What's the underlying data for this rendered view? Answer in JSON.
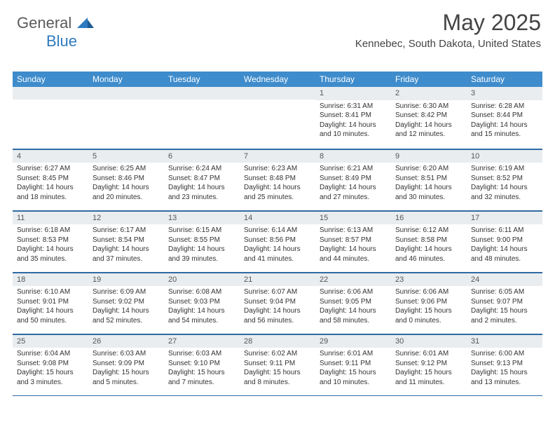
{
  "brand": {
    "part1": "General",
    "part2": "Blue"
  },
  "title": "May 2025",
  "subtitle": "Kennebec, South Dakota, United States",
  "colors": {
    "header_bg": "#3e8ccc",
    "daynum_bg": "#e9edf0",
    "rule": "#2f6aa3",
    "text": "#333333",
    "brand_gray": "#5a5a5a",
    "brand_blue": "#2f7ac0"
  },
  "columns": [
    "Sunday",
    "Monday",
    "Tuesday",
    "Wednesday",
    "Thursday",
    "Friday",
    "Saturday"
  ],
  "weeks": [
    [
      null,
      null,
      null,
      null,
      {
        "n": "1",
        "sunrise": "6:31 AM",
        "sunset": "8:41 PM",
        "dl": "14 hours and 10 minutes."
      },
      {
        "n": "2",
        "sunrise": "6:30 AM",
        "sunset": "8:42 PM",
        "dl": "14 hours and 12 minutes."
      },
      {
        "n": "3",
        "sunrise": "6:28 AM",
        "sunset": "8:44 PM",
        "dl": "14 hours and 15 minutes."
      }
    ],
    [
      {
        "n": "4",
        "sunrise": "6:27 AM",
        "sunset": "8:45 PM",
        "dl": "14 hours and 18 minutes."
      },
      {
        "n": "5",
        "sunrise": "6:25 AM",
        "sunset": "8:46 PM",
        "dl": "14 hours and 20 minutes."
      },
      {
        "n": "6",
        "sunrise": "6:24 AM",
        "sunset": "8:47 PM",
        "dl": "14 hours and 23 minutes."
      },
      {
        "n": "7",
        "sunrise": "6:23 AM",
        "sunset": "8:48 PM",
        "dl": "14 hours and 25 minutes."
      },
      {
        "n": "8",
        "sunrise": "6:21 AM",
        "sunset": "8:49 PM",
        "dl": "14 hours and 27 minutes."
      },
      {
        "n": "9",
        "sunrise": "6:20 AM",
        "sunset": "8:51 PM",
        "dl": "14 hours and 30 minutes."
      },
      {
        "n": "10",
        "sunrise": "6:19 AM",
        "sunset": "8:52 PM",
        "dl": "14 hours and 32 minutes."
      }
    ],
    [
      {
        "n": "11",
        "sunrise": "6:18 AM",
        "sunset": "8:53 PM",
        "dl": "14 hours and 35 minutes."
      },
      {
        "n": "12",
        "sunrise": "6:17 AM",
        "sunset": "8:54 PM",
        "dl": "14 hours and 37 minutes."
      },
      {
        "n": "13",
        "sunrise": "6:15 AM",
        "sunset": "8:55 PM",
        "dl": "14 hours and 39 minutes."
      },
      {
        "n": "14",
        "sunrise": "6:14 AM",
        "sunset": "8:56 PM",
        "dl": "14 hours and 41 minutes."
      },
      {
        "n": "15",
        "sunrise": "6:13 AM",
        "sunset": "8:57 PM",
        "dl": "14 hours and 44 minutes."
      },
      {
        "n": "16",
        "sunrise": "6:12 AM",
        "sunset": "8:58 PM",
        "dl": "14 hours and 46 minutes."
      },
      {
        "n": "17",
        "sunrise": "6:11 AM",
        "sunset": "9:00 PM",
        "dl": "14 hours and 48 minutes."
      }
    ],
    [
      {
        "n": "18",
        "sunrise": "6:10 AM",
        "sunset": "9:01 PM",
        "dl": "14 hours and 50 minutes."
      },
      {
        "n": "19",
        "sunrise": "6:09 AM",
        "sunset": "9:02 PM",
        "dl": "14 hours and 52 minutes."
      },
      {
        "n": "20",
        "sunrise": "6:08 AM",
        "sunset": "9:03 PM",
        "dl": "14 hours and 54 minutes."
      },
      {
        "n": "21",
        "sunrise": "6:07 AM",
        "sunset": "9:04 PM",
        "dl": "14 hours and 56 minutes."
      },
      {
        "n": "22",
        "sunrise": "6:06 AM",
        "sunset": "9:05 PM",
        "dl": "14 hours and 58 minutes."
      },
      {
        "n": "23",
        "sunrise": "6:06 AM",
        "sunset": "9:06 PM",
        "dl": "15 hours and 0 minutes."
      },
      {
        "n": "24",
        "sunrise": "6:05 AM",
        "sunset": "9:07 PM",
        "dl": "15 hours and 2 minutes."
      }
    ],
    [
      {
        "n": "25",
        "sunrise": "6:04 AM",
        "sunset": "9:08 PM",
        "dl": "15 hours and 3 minutes."
      },
      {
        "n": "26",
        "sunrise": "6:03 AM",
        "sunset": "9:09 PM",
        "dl": "15 hours and 5 minutes."
      },
      {
        "n": "27",
        "sunrise": "6:03 AM",
        "sunset": "9:10 PM",
        "dl": "15 hours and 7 minutes."
      },
      {
        "n": "28",
        "sunrise": "6:02 AM",
        "sunset": "9:11 PM",
        "dl": "15 hours and 8 minutes."
      },
      {
        "n": "29",
        "sunrise": "6:01 AM",
        "sunset": "9:11 PM",
        "dl": "15 hours and 10 minutes."
      },
      {
        "n": "30",
        "sunrise": "6:01 AM",
        "sunset": "9:12 PM",
        "dl": "15 hours and 11 minutes."
      },
      {
        "n": "31",
        "sunrise": "6:00 AM",
        "sunset": "9:13 PM",
        "dl": "15 hours and 13 minutes."
      }
    ]
  ],
  "labels": {
    "sunrise": "Sunrise:",
    "sunset": "Sunset:",
    "daylight": "Daylight:"
  }
}
